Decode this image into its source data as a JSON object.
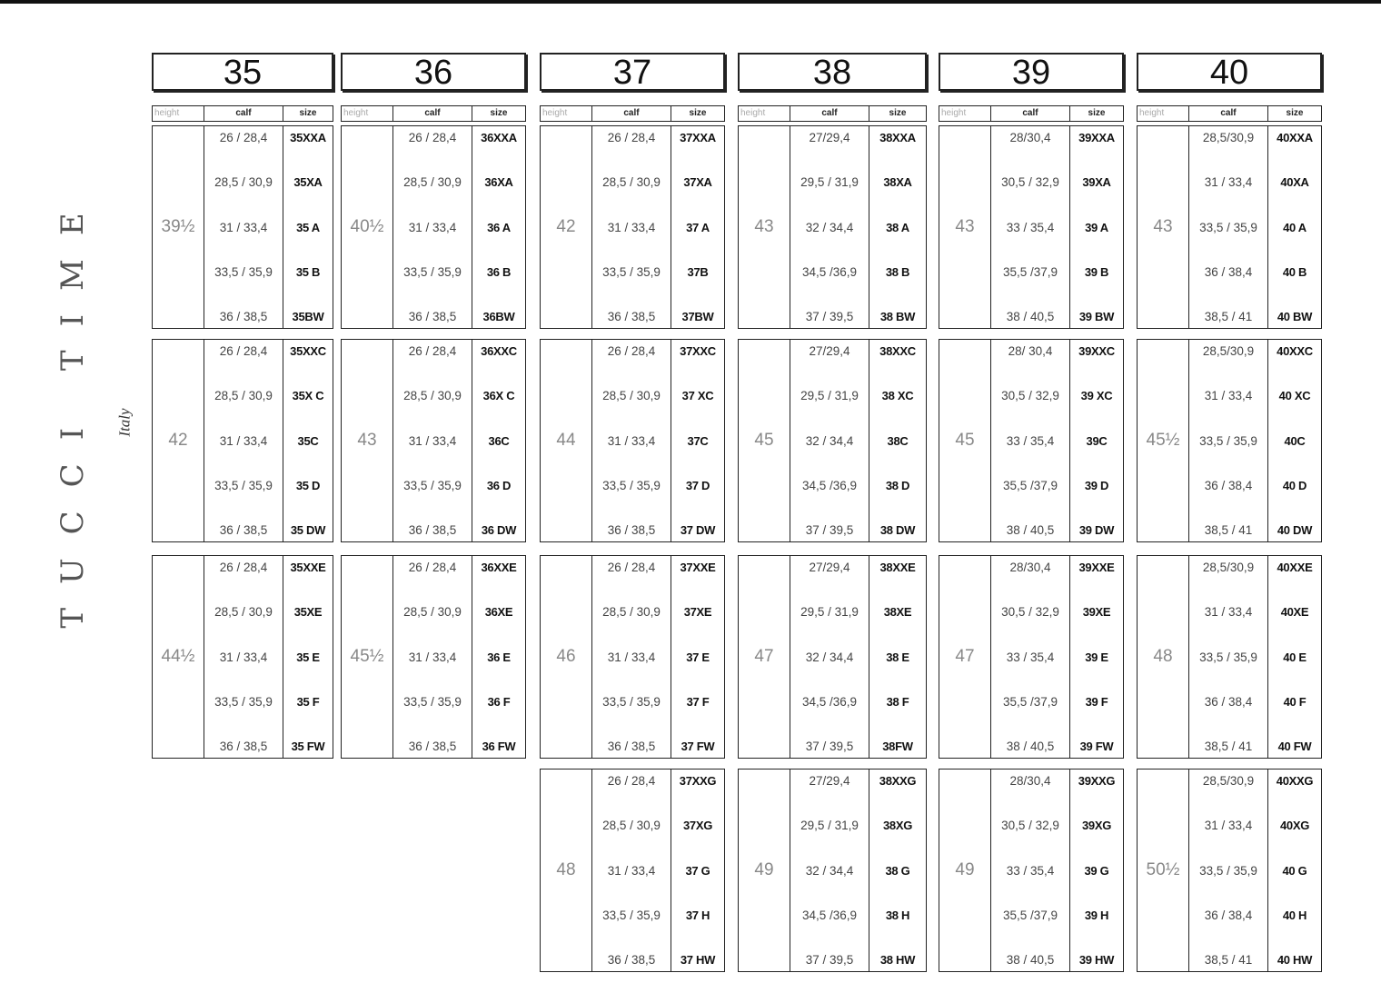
{
  "logo": {
    "brand": "TUCCI TIME",
    "tagline": "Italy"
  },
  "column_labels": {
    "height": "height",
    "calf": "calf",
    "size": "size"
  },
  "columns": [
    {
      "size": "35",
      "blocks": [
        {
          "height": "39½",
          "rows": [
            {
              "calf": "26 / 28,4",
              "size": "35XXA"
            },
            {
              "calf": "28,5 / 30,9",
              "size": "35XA"
            },
            {
              "calf": "31 / 33,4",
              "size": "35 A"
            },
            {
              "calf": "33,5 / 35,9",
              "size": "35 B"
            },
            {
              "calf": "36 / 38,5",
              "size": "35BW"
            }
          ]
        },
        {
          "height": "42",
          "rows": [
            {
              "calf": "26 / 28,4",
              "size": "35XXC"
            },
            {
              "calf": "28,5 / 30,9",
              "size": "35X C"
            },
            {
              "calf": "31 / 33,4",
              "size": "35C"
            },
            {
              "calf": "33,5 / 35,9",
              "size": "35 D"
            },
            {
              "calf": "36 / 38,5",
              "size": "35 DW"
            }
          ]
        },
        {
          "height": "44½",
          "rows": [
            {
              "calf": "26 / 28,4",
              "size": "35XXE"
            },
            {
              "calf": "28,5 / 30,9",
              "size": "35XE"
            },
            {
              "calf": "31 / 33,4",
              "size": "35 E"
            },
            {
              "calf": "33,5 / 35,9",
              "size": "35 F"
            },
            {
              "calf": "36 / 38,5",
              "size": "35 FW"
            }
          ]
        },
        null
      ]
    },
    {
      "size": "36",
      "blocks": [
        {
          "height": "40½",
          "rows": [
            {
              "calf": "26 / 28,4",
              "size": "36XXA"
            },
            {
              "calf": "28,5 / 30,9",
              "size": "36XA"
            },
            {
              "calf": "31 / 33,4",
              "size": "36 A"
            },
            {
              "calf": "33,5 / 35,9",
              "size": "36 B"
            },
            {
              "calf": "36 / 38,5",
              "size": "36BW"
            }
          ]
        },
        {
          "height": "43",
          "rows": [
            {
              "calf": "26 / 28,4",
              "size": "36XXC"
            },
            {
              "calf": "28,5 / 30,9",
              "size": "36X C"
            },
            {
              "calf": "31 / 33,4",
              "size": "36C"
            },
            {
              "calf": "33,5 / 35,9",
              "size": "36 D"
            },
            {
              "calf": "36 / 38,5",
              "size": "36 DW"
            }
          ]
        },
        {
          "height": "45½",
          "rows": [
            {
              "calf": "26 / 28,4",
              "size": "36XXE"
            },
            {
              "calf": "28,5 / 30,9",
              "size": "36XE"
            },
            {
              "calf": "31 / 33,4",
              "size": "36 E"
            },
            {
              "calf": "33,5 / 35,9",
              "size": "36 F"
            },
            {
              "calf": "36 / 38,5",
              "size": "36 FW"
            }
          ]
        },
        null
      ]
    },
    {
      "size": "37",
      "blocks": [
        {
          "height": "42",
          "rows": [
            {
              "calf": "26 / 28,4",
              "size": "37XXA"
            },
            {
              "calf": "28,5 / 30,9",
              "size": "37XA"
            },
            {
              "calf": "31 / 33,4",
              "size": "37 A"
            },
            {
              "calf": "33,5 / 35,9",
              "size": "37B"
            },
            {
              "calf": "36 / 38,5",
              "size": "37BW"
            }
          ]
        },
        {
          "height": "44",
          "rows": [
            {
              "calf": "26 / 28,4",
              "size": "37XXC"
            },
            {
              "calf": "28,5 / 30,9",
              "size": "37 XC"
            },
            {
              "calf": "31 / 33,4",
              "size": "37C"
            },
            {
              "calf": "33,5 / 35,9",
              "size": "37 D"
            },
            {
              "calf": "36 / 38,5",
              "size": "37 DW"
            }
          ]
        },
        {
          "height": "46",
          "rows": [
            {
              "calf": "26 / 28,4",
              "size": "37XXE"
            },
            {
              "calf": "28,5 / 30,9",
              "size": "37XE"
            },
            {
              "calf": "31 / 33,4",
              "size": "37 E"
            },
            {
              "calf": "33,5 / 35,9",
              "size": "37 F"
            },
            {
              "calf": "36 / 38,5",
              "size": "37 FW"
            }
          ]
        },
        {
          "height": "48",
          "rows": [
            {
              "calf": "26 / 28,4",
              "size": "37XXG"
            },
            {
              "calf": "28,5 / 30,9",
              "size": "37XG"
            },
            {
              "calf": "31 / 33,4",
              "size": "37 G"
            },
            {
              "calf": "33,5 / 35,9",
              "size": "37 H"
            },
            {
              "calf": "36 / 38,5",
              "size": "37 HW"
            }
          ]
        }
      ]
    },
    {
      "size": "38",
      "blocks": [
        {
          "height": "43",
          "rows": [
            {
              "calf": "27/29,4",
              "size": "38XXA"
            },
            {
              "calf": "29,5 / 31,9",
              "size": "38XA"
            },
            {
              "calf": "32 / 34,4",
              "size": "38 A"
            },
            {
              "calf": "34,5 /36,9",
              "size": "38 B"
            },
            {
              "calf": "37 / 39,5",
              "size": "38 BW"
            }
          ]
        },
        {
          "height": "45",
          "rows": [
            {
              "calf": "27/29,4",
              "size": "38XXC"
            },
            {
              "calf": "29,5 / 31,9",
              "size": "38 XC"
            },
            {
              "calf": "32 / 34,4",
              "size": "38C"
            },
            {
              "calf": "34,5 /36,9",
              "size": "38 D"
            },
            {
              "calf": "37 / 39,5",
              "size": "38 DW"
            }
          ]
        },
        {
          "height": "47",
          "rows": [
            {
              "calf": "27/29,4",
              "size": "38XXE"
            },
            {
              "calf": "29,5 / 31,9",
              "size": "38XE"
            },
            {
              "calf": "32 / 34,4",
              "size": "38 E"
            },
            {
              "calf": "34,5 /36,9",
              "size": "38 F"
            },
            {
              "calf": "37 / 39,5",
              "size": "38FW"
            }
          ]
        },
        {
          "height": "49",
          "rows": [
            {
              "calf": "27/29,4",
              "size": "38XXG"
            },
            {
              "calf": "29,5 / 31,9",
              "size": "38XG"
            },
            {
              "calf": "32 / 34,4",
              "size": "38 G"
            },
            {
              "calf": "34,5 /36,9",
              "size": "38 H"
            },
            {
              "calf": "37 / 39,5",
              "size": "38 HW"
            }
          ]
        }
      ]
    },
    {
      "size": "39",
      "blocks": [
        {
          "height": "43",
          "rows": [
            {
              "calf": "28/30,4",
              "size": "39XXA"
            },
            {
              "calf": "30,5 / 32,9",
              "size": "39XA"
            },
            {
              "calf": "33 / 35,4",
              "size": "39 A"
            },
            {
              "calf": "35,5 /37,9",
              "size": "39 B"
            },
            {
              "calf": "38 / 40,5",
              "size": "39 BW"
            }
          ]
        },
        {
          "height": "45",
          "rows": [
            {
              "calf": "28/ 30,4",
              "size": "39XXC"
            },
            {
              "calf": "30,5 / 32,9",
              "size": "39 XC"
            },
            {
              "calf": "33 / 35,4",
              "size": "39C"
            },
            {
              "calf": "35,5 /37,9",
              "size": "39 D"
            },
            {
              "calf": "38 / 40,5",
              "size": "39 DW"
            }
          ]
        },
        {
          "height": "47",
          "rows": [
            {
              "calf": "28/30,4",
              "size": "39XXE"
            },
            {
              "calf": "30,5 / 32,9",
              "size": "39XE"
            },
            {
              "calf": "33 / 35,4",
              "size": "39 E"
            },
            {
              "calf": "35,5 /37,9",
              "size": "39 F"
            },
            {
              "calf": "38 / 40,5",
              "size": "39 FW"
            }
          ]
        },
        {
          "height": "49",
          "rows": [
            {
              "calf": "28/30,4",
              "size": "39XXG"
            },
            {
              "calf": "30,5 / 32,9",
              "size": "39XG"
            },
            {
              "calf": "33 / 35,4",
              "size": "39 G"
            },
            {
              "calf": "35,5 /37,9",
              "size": "39 H"
            },
            {
              "calf": "38 / 40,5",
              "size": "39 HW"
            }
          ]
        }
      ]
    },
    {
      "size": "40",
      "blocks": [
        {
          "height": "43",
          "rows": [
            {
              "calf": "28,5/30,9",
              "size": "40XXA"
            },
            {
              "calf": "31 / 33,4",
              "size": "40XA"
            },
            {
              "calf": "33,5 / 35,9",
              "size": "40 A"
            },
            {
              "calf": "36 / 38,4",
              "size": "40 B"
            },
            {
              "calf": "38,5 / 41",
              "size": "40 BW"
            }
          ]
        },
        {
          "height": "45½",
          "rows": [
            {
              "calf": "28,5/30,9",
              "size": "40XXC"
            },
            {
              "calf": "31 / 33,4",
              "size": "40 XC"
            },
            {
              "calf": "33,5 / 35,9",
              "size": "40C"
            },
            {
              "calf": "36 / 38,4",
              "size": "40 D"
            },
            {
              "calf": "38,5 / 41",
              "size": "40 DW"
            }
          ]
        },
        {
          "height": "48",
          "rows": [
            {
              "calf": "28,5/30,9",
              "size": "40XXE"
            },
            {
              "calf": "31 / 33,4",
              "size": "40XE"
            },
            {
              "calf": "33,5 / 35,9",
              "size": "40 E"
            },
            {
              "calf": "36 / 38,4",
              "size": "40 F"
            },
            {
              "calf": "38,5 / 41",
              "size": "40 FW"
            }
          ]
        },
        {
          "height": "50½",
          "rows": [
            {
              "calf": "28,5/30,9",
              "size": "40XXG"
            },
            {
              "calf": "31 / 33,4",
              "size": "40XG"
            },
            {
              "calf": "33,5 / 35,9",
              "size": "40 G"
            },
            {
              "calf": "36 / 38,4",
              "size": "40 H"
            },
            {
              "calf": "38,5 / 41",
              "size": "40 HW"
            }
          ]
        }
      ]
    }
  ]
}
